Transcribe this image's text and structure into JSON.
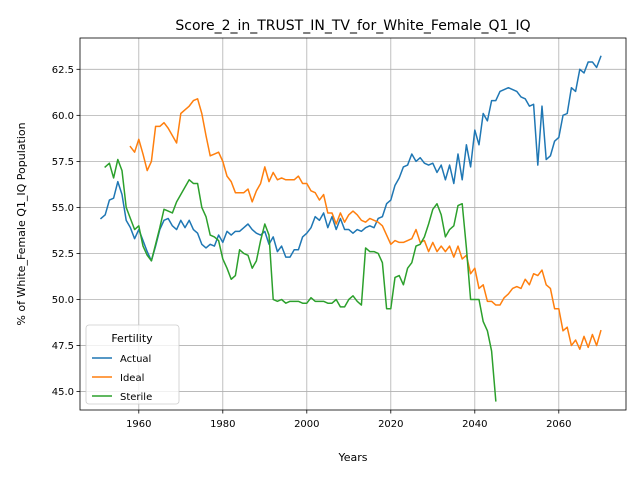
{
  "chart_data": {
    "type": "line",
    "title": "Score_2_in_TRUST_IN_TV_for_White_Female_Q1_IQ",
    "xlabel": "Years",
    "ylabel": "% of White_Female Q1_IQ Population",
    "xlim": [
      1946,
      2076
    ],
    "ylim": [
      44.0,
      64.2
    ],
    "xticks": [
      1960,
      1980,
      2000,
      2020,
      2040,
      2060
    ],
    "yticks": [
      45.0,
      47.5,
      50.0,
      52.5,
      55.0,
      57.5,
      60.0,
      62.5
    ],
    "xtick_labels": [
      "1960",
      "1980",
      "2000",
      "2020",
      "2040",
      "2060"
    ],
    "ytick_labels": [
      "45.0",
      "47.5",
      "50.0",
      "52.5",
      "55.0",
      "57.5",
      "60.0",
      "62.5"
    ],
    "grid": true,
    "legend": {
      "title": "Fertility",
      "position": "lower-left"
    },
    "series": [
      {
        "name": "Actual",
        "color": "#1f77b4",
        "x": [
          1951,
          1952,
          1953,
          1954,
          1955,
          1956,
          1957,
          1958,
          1959,
          1960,
          1961,
          1962,
          1963,
          1964,
          1965,
          1966,
          1967,
          1968,
          1969,
          1970,
          1971,
          1972,
          1973,
          1974,
          1975,
          1976,
          1977,
          1978,
          1979,
          1980,
          1981,
          1982,
          1983,
          1984,
          1985,
          1986,
          1987,
          1988,
          1989,
          1990,
          1991,
          1992,
          1993,
          1994,
          1995,
          1996,
          1997,
          1998,
          1999,
          2000,
          2001,
          2002,
          2003,
          2004,
          2005,
          2006,
          2007,
          2008,
          2009,
          2010,
          2011,
          2012,
          2013,
          2014,
          2015,
          2016,
          2017,
          2018,
          2019,
          2020,
          2021,
          2022,
          2023,
          2024,
          2025,
          2026,
          2027,
          2028,
          2029,
          2030,
          2031,
          2032,
          2033,
          2034,
          2035,
          2036,
          2037,
          2038,
          2039,
          2040,
          2041,
          2042,
          2043,
          2044,
          2045,
          2046,
          2047,
          2048,
          2049,
          2050,
          2051,
          2052,
          2053,
          2054,
          2055,
          2056,
          2057,
          2058,
          2059,
          2060,
          2061,
          2062,
          2063,
          2064,
          2065,
          2066,
          2067,
          2068,
          2069,
          2070
        ],
        "values": [
          54.4,
          54.6,
          55.4,
          55.5,
          56.4,
          55.7,
          54.3,
          53.9,
          53.3,
          53.8,
          53.2,
          52.6,
          52.1,
          52.9,
          53.8,
          54.3,
          54.4,
          54.0,
          53.8,
          54.3,
          53.9,
          54.3,
          53.8,
          53.6,
          53.0,
          52.8,
          53.0,
          52.9,
          53.5,
          53.1,
          53.7,
          53.5,
          53.7,
          53.7,
          53.9,
          54.1,
          53.8,
          53.6,
          53.5,
          53.7,
          53.0,
          53.4,
          52.6,
          52.9,
          52.3,
          52.3,
          52.7,
          52.7,
          53.4,
          53.6,
          53.9,
          54.5,
          54.3,
          54.7,
          53.9,
          54.5,
          53.8,
          54.4,
          53.8,
          53.8,
          53.6,
          53.8,
          53.7,
          53.9,
          54.0,
          53.9,
          54.4,
          54.5,
          55.2,
          55.4,
          56.2,
          56.6,
          57.2,
          57.3,
          57.9,
          57.5,
          57.7,
          57.4,
          57.3,
          57.4,
          56.9,
          57.3,
          56.5,
          57.3,
          56.3,
          57.9,
          56.5,
          58.4,
          57.2,
          59.2,
          58.4,
          60.1,
          59.7,
          60.8,
          60.8,
          61.3,
          61.4,
          61.5,
          61.4,
          61.3,
          61.0,
          60.9,
          60.5,
          60.6,
          57.3,
          60.5,
          57.6,
          57.8,
          58.6,
          58.8,
          60.0,
          60.1,
          61.5,
          61.3,
          62.5,
          62.3,
          62.9,
          62.9,
          62.6,
          63.2
        ]
      },
      {
        "name": "Ideal",
        "color": "#ff7f0e",
        "x": [
          1958,
          1959,
          1960,
          1961,
          1962,
          1963,
          1964,
          1965,
          1966,
          1967,
          1968,
          1969,
          1970,
          1971,
          1972,
          1973,
          1974,
          1975,
          1976,
          1977,
          1978,
          1979,
          1980,
          1981,
          1982,
          1983,
          1984,
          1985,
          1986,
          1987,
          1988,
          1989,
          1990,
          1991,
          1992,
          1993,
          1994,
          1995,
          1996,
          1997,
          1998,
          1999,
          2000,
          2001,
          2002,
          2003,
          2004,
          2005,
          2006,
          2007,
          2008,
          2009,
          2010,
          2011,
          2012,
          2013,
          2014,
          2015,
          2016,
          2017,
          2018,
          2019,
          2020,
          2021,
          2022,
          2023,
          2024,
          2025,
          2026,
          2027,
          2028,
          2029,
          2030,
          2031,
          2032,
          2033,
          2034,
          2035,
          2036,
          2037,
          2038,
          2039,
          2040,
          2041,
          2042,
          2043,
          2044,
          2045,
          2046,
          2047,
          2048,
          2049,
          2050,
          2051,
          2052,
          2053,
          2054,
          2055,
          2056,
          2057,
          2058,
          2059,
          2060,
          2061,
          2062,
          2063,
          2064,
          2065,
          2066,
          2067,
          2068,
          2069,
          2070
        ],
        "values": [
          58.3,
          58.0,
          58.7,
          57.9,
          57.0,
          57.5,
          59.4,
          59.4,
          59.6,
          59.3,
          58.9,
          58.5,
          60.1,
          60.3,
          60.5,
          60.8,
          60.9,
          60.1,
          58.9,
          57.8,
          57.9,
          58.0,
          57.5,
          56.7,
          56.4,
          55.8,
          55.8,
          55.8,
          56.0,
          55.3,
          55.9,
          56.3,
          57.2,
          56.4,
          56.9,
          56.5,
          56.6,
          56.5,
          56.5,
          56.5,
          56.7,
          56.3,
          56.3,
          55.9,
          55.8,
          55.4,
          55.7,
          54.7,
          54.7,
          54.1,
          54.7,
          54.2,
          54.6,
          54.8,
          54.6,
          54.3,
          54.2,
          54.4,
          54.3,
          54.2,
          54.0,
          53.5,
          53.0,
          53.2,
          53.1,
          53.1,
          53.2,
          53.3,
          53.8,
          53.1,
          53.2,
          52.6,
          53.1,
          52.6,
          52.9,
          52.6,
          52.9,
          52.3,
          52.9,
          52.2,
          52.4,
          51.4,
          51.7,
          50.6,
          50.8,
          49.9,
          49.9,
          49.7,
          49.7,
          50.1,
          50.3,
          50.6,
          50.7,
          50.6,
          51.1,
          50.8,
          51.4,
          51.3,
          51.6,
          50.8,
          50.6,
          49.5,
          49.5,
          48.3,
          48.5,
          47.5,
          47.8,
          47.3,
          48.0,
          47.4,
          48.1,
          47.5,
          48.3
        ]
      },
      {
        "name": "Sterile",
        "color": "#2ca02c",
        "x": [
          1952,
          1953,
          1954,
          1955,
          1956,
          1957,
          1958,
          1959,
          1960,
          1961,
          1962,
          1963,
          1964,
          1965,
          1966,
          1967,
          1968,
          1969,
          1970,
          1971,
          1972,
          1973,
          1974,
          1975,
          1976,
          1977,
          1978,
          1979,
          1980,
          1981,
          1982,
          1983,
          1984,
          1985,
          1986,
          1987,
          1988,
          1989,
          1990,
          1991,
          1992,
          1993,
          1994,
          1995,
          1996,
          1997,
          1998,
          1999,
          2000,
          2001,
          2002,
          2003,
          2004,
          2005,
          2006,
          2007,
          2008,
          2009,
          2010,
          2011,
          2012,
          2013,
          2014,
          2015,
          2016,
          2017,
          2018,
          2019,
          2020,
          2021,
          2022,
          2023,
          2024,
          2025,
          2026,
          2027,
          2028,
          2029,
          2030,
          2031,
          2032,
          2033,
          2034,
          2035,
          2036,
          2037,
          2038,
          2039,
          2040,
          2041,
          2042,
          2043,
          2044,
          2045
        ],
        "values": [
          57.2,
          57.4,
          56.6,
          57.6,
          57.0,
          55.0,
          54.4,
          53.8,
          54.0,
          52.9,
          52.4,
          52.1,
          53.0,
          53.9,
          54.9,
          54.8,
          54.7,
          55.3,
          55.7,
          56.1,
          56.5,
          56.3,
          56.3,
          55.0,
          54.5,
          53.5,
          53.4,
          53.2,
          52.2,
          51.7,
          51.1,
          51.3,
          52.7,
          52.5,
          52.4,
          51.7,
          52.1,
          53.2,
          54.1,
          53.5,
          50.0,
          49.9,
          50.0,
          49.8,
          49.9,
          49.9,
          49.9,
          49.8,
          49.8,
          50.1,
          49.9,
          49.9,
          49.9,
          49.8,
          49.8,
          50.0,
          49.6,
          49.6,
          50.0,
          50.2,
          49.9,
          49.7,
          52.8,
          52.6,
          52.6,
          52.5,
          52.0,
          49.5,
          49.5,
          51.2,
          51.3,
          50.8,
          51.7,
          52.0,
          52.9,
          53.0,
          53.4,
          54.1,
          54.9,
          55.2,
          54.6,
          53.4,
          53.8,
          54.0,
          55.1,
          55.2,
          52.8,
          50.0,
          50.0,
          50.0,
          48.8,
          48.3,
          47.2,
          44.5
        ]
      }
    ]
  }
}
